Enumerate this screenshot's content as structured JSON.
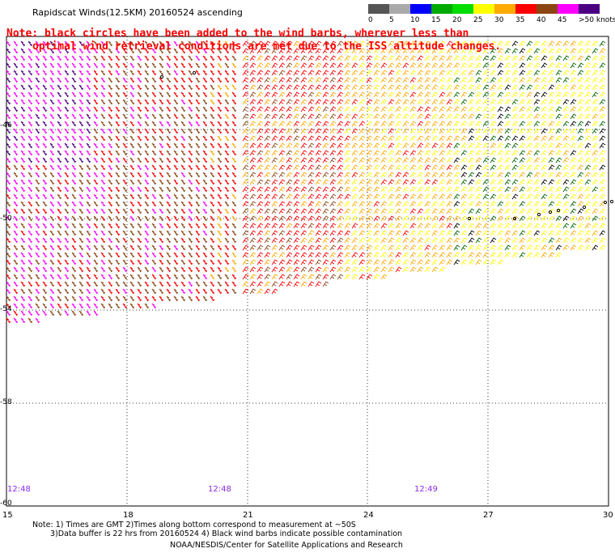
{
  "title": "Rapidscat Winds(12.5KM) 20160524 ascending",
  "legend": {
    "labels": [
      "0",
      "5",
      "10",
      "15",
      "20",
      "25",
      "30",
      "35",
      "40",
      "45",
      ">50 knots"
    ],
    "colors": [
      "#555555",
      "#aaaaaa",
      "#0000ff",
      "#00aa00",
      "#00dd00",
      "#ffff00",
      "#ffaa00",
      "#ff0000",
      "#8b4513",
      "#ff00ff",
      "#4b0082"
    ]
  },
  "note": {
    "line1": "Note: black circles have been added to the wind barbs, wherever less than",
    "line2": "optimal wind retrieval conditions are met due to the ISS altitude changes."
  },
  "map": {
    "x_ticks": [
      "15",
      "18",
      "21",
      "24",
      "27",
      "30"
    ],
    "y_ticks": [
      "-46",
      "-50",
      "-54",
      "-58",
      "-60"
    ],
    "times": [
      "12:48",
      "12:48",
      "12:49"
    ]
  },
  "footer": {
    "line1": "Note: 1) Times are GMT 2)Times along bottom correspond to measurement at ~50S",
    "line2": "3)Data buffer is 22 hrs from 20160524 4) Black wind barbs indicate possible contamination",
    "line3": "NOAA/NESDIS/Center for Satellite Applications and Research"
  }
}
